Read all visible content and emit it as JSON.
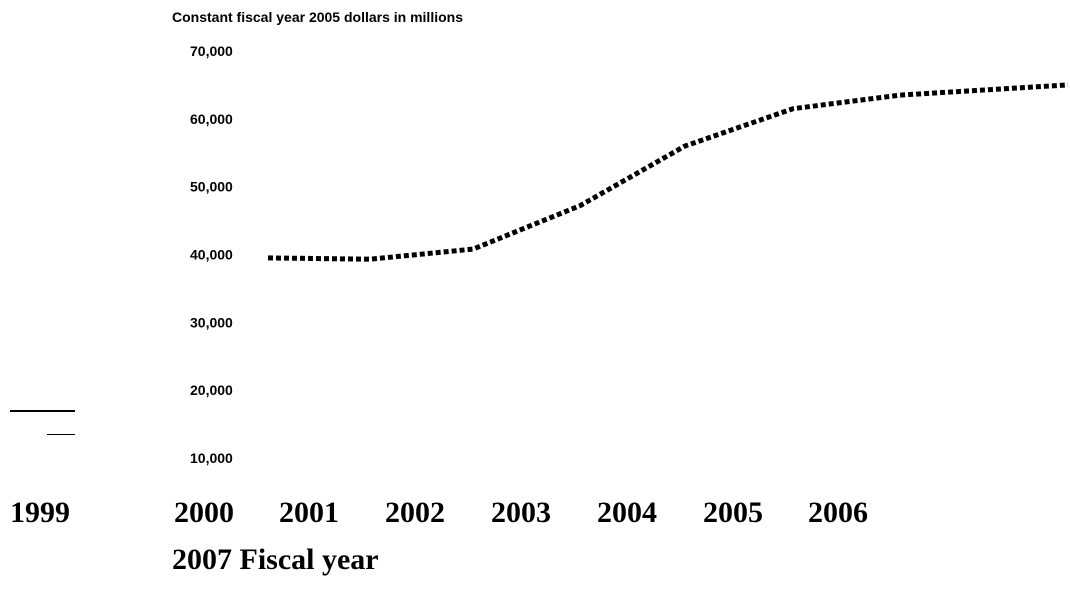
{
  "chart_data": {
    "type": "line",
    "ylabel": "Constant fiscal year 2005 dollars in millions",
    "xlabel": "Fiscal year",
    "ylim": [
      10000,
      70000
    ],
    "y_ticks": [
      "70,000",
      "60,000",
      "50,000",
      "40,000",
      "30,000",
      "20,000",
      "10,000"
    ],
    "y_tick_values": [
      70000,
      60000,
      50000,
      40000,
      30000,
      20000,
      10000
    ],
    "x_ticks": [
      "1999",
      "2000",
      "2001",
      "2002",
      "2003",
      "2004",
      "2005",
      "2006",
      "2007"
    ],
    "grid": false,
    "series": [
      {
        "style": "dotted",
        "color": "#000000",
        "x": [
          2000,
          2001,
          2002,
          2003,
          2004,
          2005,
          2006,
          2007
        ],
        "y": [
          39500,
          39300,
          40800,
          47200,
          56000,
          61500,
          63500,
          65000
        ]
      }
    ]
  }
}
